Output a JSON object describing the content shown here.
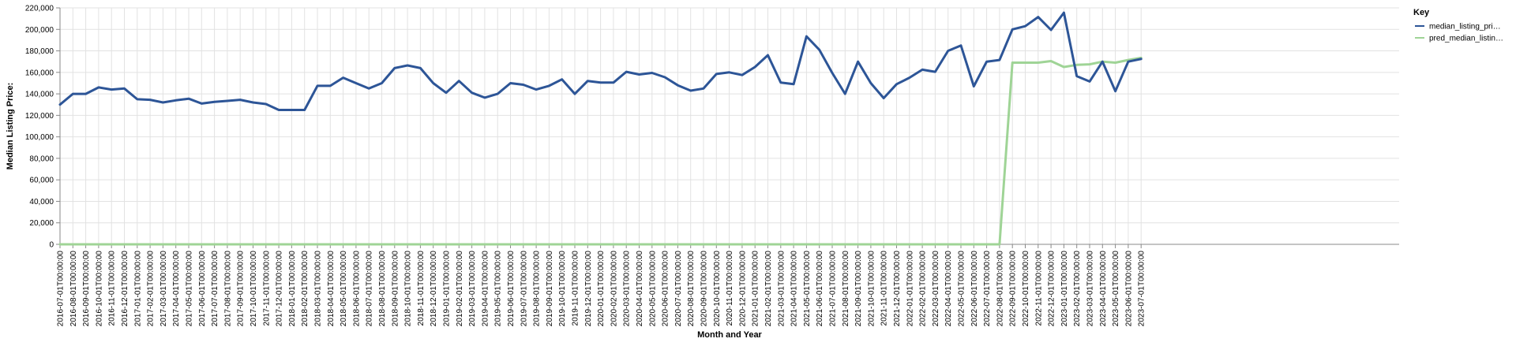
{
  "chart_data": {
    "type": "line",
    "title": "",
    "xlabel": "Month and Year",
    "ylabel": "Median Listing Price:",
    "ylim": [
      0,
      220000
    ],
    "yticks": [
      "0",
      "20,000",
      "40,000",
      "60,000",
      "80,000",
      "100,000",
      "120,000",
      "140,000",
      "160,000",
      "180,000",
      "200,000",
      "220,000"
    ],
    "ytick_values": [
      0,
      20000,
      40000,
      60000,
      80000,
      100000,
      120000,
      140000,
      160000,
      180000,
      200000,
      220000
    ],
    "grid": true,
    "legend": {
      "title": "Key",
      "position": "top-right",
      "entries": [
        "median_listing_pri…",
        "pred_median_listin…"
      ]
    },
    "categories": [
      "2016-07-01T00:00:00",
      "2016-08-01T00:00:00",
      "2016-09-01T00:00:00",
      "2016-10-01T00:00:00",
      "2016-11-01T00:00:00",
      "2016-12-01T00:00:00",
      "2017-01-01T00:00:00",
      "2017-02-01T00:00:00",
      "2017-03-01T00:00:00",
      "2017-04-01T00:00:00",
      "2017-05-01T00:00:00",
      "2017-06-01T00:00:00",
      "2017-07-01T00:00:00",
      "2017-08-01T00:00:00",
      "2017-09-01T00:00:00",
      "2017-10-01T00:00:00",
      "2017-11-01T00:00:00",
      "2017-12-01T00:00:00",
      "2018-01-01T00:00:00",
      "2018-02-01T00:00:00",
      "2018-03-01T00:00:00",
      "2018-04-01T00:00:00",
      "2018-05-01T00:00:00",
      "2018-06-01T00:00:00",
      "2018-07-01T00:00:00",
      "2018-08-01T00:00:00",
      "2018-09-01T00:00:00",
      "2018-10-01T00:00:00",
      "2018-11-01T00:00:00",
      "2018-12-01T00:00:00",
      "2019-01-01T00:00:00",
      "2019-02-01T00:00:00",
      "2019-03-01T00:00:00",
      "2019-04-01T00:00:00",
      "2019-05-01T00:00:00",
      "2019-06-01T00:00:00",
      "2019-07-01T00:00:00",
      "2019-08-01T00:00:00",
      "2019-09-01T00:00:00",
      "2019-10-01T00:00:00",
      "2019-11-01T00:00:00",
      "2019-12-01T00:00:00",
      "2020-01-01T00:00:00",
      "2020-02-01T00:00:00",
      "2020-03-01T00:00:00",
      "2020-04-01T00:00:00",
      "2020-05-01T00:00:00",
      "2020-06-01T00:00:00",
      "2020-07-01T00:00:00",
      "2020-08-01T00:00:00",
      "2020-09-01T00:00:00",
      "2020-10-01T00:00:00",
      "2020-11-01T00:00:00",
      "2020-12-01T00:00:00",
      "2021-01-01T00:00:00",
      "2021-02-01T00:00:00",
      "2021-03-01T00:00:00",
      "2021-04-01T00:00:00",
      "2021-05-01T00:00:00",
      "2021-06-01T00:00:00",
      "2021-07-01T00:00:00",
      "2021-08-01T00:00:00",
      "2021-09-01T00:00:00",
      "2021-10-01T00:00:00",
      "2021-11-01T00:00:00",
      "2021-12-01T00:00:00",
      "2022-01-01T00:00:00",
      "2022-02-01T00:00:00",
      "2022-03-01T00:00:00",
      "2022-04-01T00:00:00",
      "2022-05-01T00:00:00",
      "2022-06-01T00:00:00",
      "2022-07-01T00:00:00",
      "2022-08-01T00:00:00",
      "2022-09-01T00:00:00",
      "2022-10-01T00:00:00",
      "2022-11-01T00:00:00",
      "2022-12-01T00:00:00",
      "2023-01-01T00:00:00",
      "2023-02-01T00:00:00",
      "2023-03-01T00:00:00",
      "2023-04-01T00:00:00",
      "2023-05-01T00:00:00",
      "2023-06-01T00:00:00",
      "2023-07-01T00:00:00"
    ],
    "series": [
      {
        "name": "median_listing_pri…",
        "color": "#2d5597",
        "values": [
          130000,
          140000,
          140000,
          146000,
          144000,
          145000,
          135000,
          134500,
          132000,
          134000,
          135500,
          131000,
          132500,
          133500,
          134500,
          132000,
          130500,
          125000,
          125000,
          125000,
          147500,
          147500,
          155000,
          150000,
          145000,
          150000,
          164000,
          166500,
          164000,
          150000,
          141000,
          152000,
          141000,
          136500,
          140000,
          150000,
          148500,
          144000,
          147500,
          153500,
          140000,
          152000,
          150500,
          150500,
          160500,
          158000,
          159500,
          155500,
          148000,
          143000,
          145000,
          158500,
          160000,
          157500,
          165000,
          176000,
          150500,
          149000,
          193500,
          181000,
          159500,
          140000,
          170000,
          150000,
          136000,
          149000,
          155000,
          162500,
          160500,
          180000,
          185000,
          147000,
          170000,
          171500,
          200000,
          203000,
          211500,
          199500,
          215500,
          156500,
          151500,
          170000,
          142500,
          170000,
          172500
        ]
      },
      {
        "name": "pred_median_listin…",
        "color": "#9fd496",
        "values": [
          0,
          0,
          0,
          0,
          0,
          0,
          0,
          0,
          0,
          0,
          0,
          0,
          0,
          0,
          0,
          0,
          0,
          0,
          0,
          0,
          0,
          0,
          0,
          0,
          0,
          0,
          0,
          0,
          0,
          0,
          0,
          0,
          0,
          0,
          0,
          0,
          0,
          0,
          0,
          0,
          0,
          0,
          0,
          0,
          0,
          0,
          0,
          0,
          0,
          0,
          0,
          0,
          0,
          0,
          0,
          0,
          0,
          0,
          0,
          0,
          0,
          0,
          0,
          0,
          0,
          0,
          0,
          0,
          0,
          0,
          0,
          0,
          0,
          0,
          169000,
          169000,
          169000,
          170500,
          165000,
          167000,
          167500,
          170000,
          169000,
          171500,
          173500
        ]
      }
    ]
  }
}
